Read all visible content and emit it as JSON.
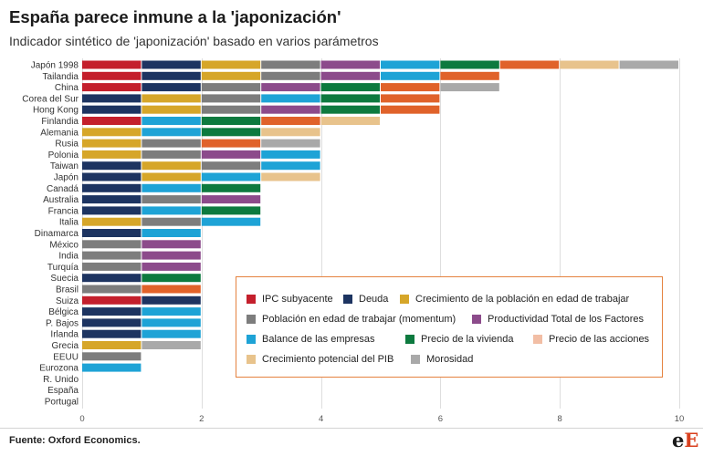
{
  "chart_data": {
    "type": "bar",
    "orientation": "horizontal",
    "stacked": true,
    "title": "España parece inmune a la 'japonización'",
    "subtitle": "Indicador sintético de 'japonización' basado en varios parámetros",
    "xlabel": "",
    "ylabel": "",
    "categories": [
      "Japón 1998",
      "Tailandia",
      "China",
      "Corea del Sur",
      "Hong Kong",
      "Finlandia",
      "Alemania",
      "Rusia",
      "Polonia",
      "Taiwan",
      "Japón",
      "Canadá",
      "Australia",
      "Francia",
      "Italia",
      "Dinamarca",
      "México",
      "India",
      "Turquía",
      "Suecia",
      "Brasil",
      "Suiza",
      "Bélgica",
      "P. Bajos",
      "Irlanda",
      "Grecia",
      "EEUU",
      "Eurozona",
      "R. Unido",
      "España",
      "Portugal"
    ],
    "series": [
      {
        "name": "IPC subyacente",
        "color": "#c41f2c",
        "values": [
          1,
          1,
          1,
          0,
          0,
          1,
          0,
          0,
          0,
          0,
          0,
          0,
          0,
          0,
          0,
          0,
          0,
          0,
          0,
          0,
          0,
          1,
          0,
          0,
          0,
          0,
          0,
          0,
          0,
          0,
          0
        ]
      },
      {
        "name": "Deuda",
        "color": "#1d3461",
        "values": [
          1,
          1,
          1,
          1,
          1,
          0,
          0,
          0,
          0,
          1,
          1,
          1,
          1,
          1,
          0,
          1,
          0,
          0,
          0,
          1,
          0,
          1,
          1,
          1,
          1,
          0,
          0,
          0,
          0,
          0,
          0
        ]
      },
      {
        "name": "Crecimiento de la población en edad de trabajar",
        "color": "#d6a629",
        "values": [
          1,
          1,
          0,
          1,
          1,
          0,
          1,
          1,
          1,
          1,
          1,
          0,
          0,
          0,
          1,
          0,
          0,
          0,
          0,
          0,
          0,
          0,
          0,
          0,
          0,
          1,
          0,
          0,
          0,
          0,
          0
        ]
      },
      {
        "name": "Población en edad de trabajar (momentum)",
        "color": "#7d7d7d",
        "values": [
          1,
          1,
          1,
          1,
          1,
          0,
          0,
          1,
          1,
          1,
          0,
          0,
          1,
          0,
          1,
          0,
          1,
          1,
          1,
          0,
          1,
          0,
          0,
          0,
          0,
          0,
          1,
          0,
          0,
          0,
          0
        ]
      },
      {
        "name": "Productividad Total de los Factores",
        "color": "#8c4b8b",
        "values": [
          1,
          1,
          1,
          0,
          1,
          0,
          0,
          0,
          1,
          0,
          0,
          0,
          1,
          0,
          0,
          0,
          1,
          1,
          1,
          0,
          0,
          0,
          0,
          0,
          0,
          0,
          0,
          0,
          0,
          0,
          0
        ]
      },
      {
        "name": "Balance de las empresas",
        "color": "#1ea3d6",
        "values": [
          1,
          1,
          0,
          1,
          0,
          1,
          1,
          0,
          1,
          1,
          1,
          1,
          0,
          1,
          1,
          1,
          0,
          0,
          0,
          0,
          0,
          0,
          1,
          1,
          1,
          0,
          0,
          1,
          0,
          0,
          0
        ]
      },
      {
        "name": "Precio de la vivienda",
        "color": "#0d7a3f",
        "values": [
          1,
          0,
          1,
          1,
          1,
          1,
          1,
          0,
          0,
          0,
          0,
          1,
          0,
          1,
          0,
          0,
          0,
          0,
          0,
          1,
          0,
          0,
          0,
          0,
          0,
          0,
          0,
          0,
          0,
          0,
          0
        ]
      },
      {
        "name": "Precio de las acciones",
        "color": "#e0622a",
        "legend_color": "#f2bea5",
        "values": [
          1,
          1,
          1,
          1,
          1,
          1,
          0,
          1,
          0,
          0,
          0,
          0,
          0,
          0,
          0,
          0,
          0,
          0,
          0,
          0,
          1,
          0,
          0,
          0,
          0,
          0,
          0,
          0,
          0,
          0,
          0
        ]
      },
      {
        "name": "Crecimiento potencial del PIB",
        "color": "#e8c38c",
        "values": [
          1,
          0,
          0,
          0,
          0,
          1,
          1,
          0,
          0,
          0,
          1,
          0,
          0,
          0,
          0,
          0,
          0,
          0,
          0,
          0,
          0,
          0,
          0,
          0,
          0,
          0,
          0,
          0,
          0,
          0,
          0
        ]
      },
      {
        "name": "Morosidad",
        "color": "#a9a9a9",
        "values": [
          1,
          0,
          1,
          0,
          0,
          0,
          0,
          1,
          0,
          0,
          0,
          0,
          0,
          0,
          0,
          0,
          0,
          0,
          0,
          0,
          0,
          0,
          0,
          0,
          0,
          1,
          0,
          0,
          0,
          0,
          0
        ]
      }
    ],
    "xlim": [
      0,
      10
    ],
    "xticks": [
      0,
      2,
      4,
      6,
      8,
      10
    ],
    "grid": true,
    "legend_position": "inside-bottom-right"
  },
  "footer": {
    "source": "Fuente: Oxford Economics.",
    "logo": {
      "part1": "e",
      "part2": "E"
    }
  },
  "colors": {
    "legend_border": "#e5823f",
    "logo_accent": "#d9401e"
  }
}
